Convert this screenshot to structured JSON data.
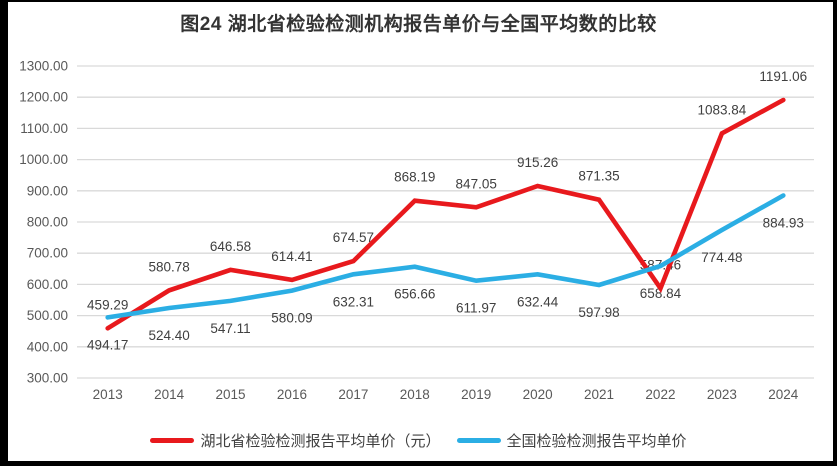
{
  "chart_data": {
    "type": "line",
    "title": "图24 湖北省检验检测机构报告单价与全国平均数的比较",
    "categories": [
      "2013",
      "2014",
      "2015",
      "2016",
      "2017",
      "2018",
      "2019",
      "2020",
      "2021",
      "2022",
      "2023",
      "2024"
    ],
    "series": [
      {
        "name": "湖北省检验检测报告平均单价（元）",
        "color": "#E8191D",
        "label_position": "above",
        "values": [
          459.29,
          580.78,
          646.58,
          614.41,
          674.57,
          868.19,
          847.05,
          915.26,
          871.35,
          587.46,
          1083.84,
          1191.06
        ]
      },
      {
        "name": "全国检验检测报告平均单价",
        "color": "#2BAEE4",
        "label_position": "below",
        "values": [
          494.17,
          524.4,
          547.11,
          580.09,
          632.31,
          656.66,
          611.97,
          632.44,
          597.98,
          658.84,
          774.48,
          884.93
        ]
      }
    ],
    "ylabel": "",
    "xlabel": "",
    "ylim": [
      300,
      1300
    ],
    "ytick_step": 100,
    "ytick_format_decimals": 2,
    "value_label_decimals": 2,
    "grid": "horizontal",
    "grid_color": "#D9D9D9",
    "axis_text_color": "#595959",
    "label_text_color": "#404040",
    "legend_position": "bottom",
    "frame_color": "#000000",
    "background_color": "#FFFFFF"
  }
}
